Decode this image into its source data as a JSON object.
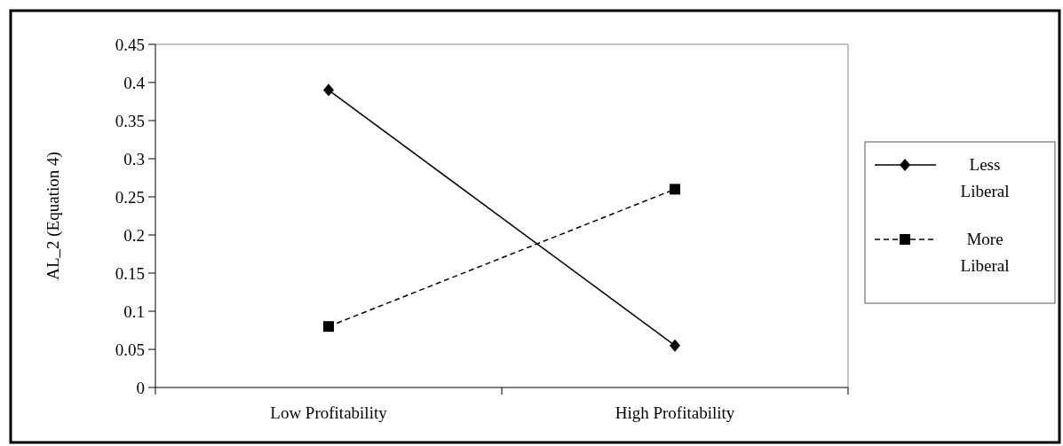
{
  "chart_data": {
    "type": "line",
    "ylabel": "AL_2 (Equation 4)",
    "categories": [
      "Low Profitability",
      "High Profitability"
    ],
    "series": [
      {
        "name": "Less Liberal",
        "color": "#000000",
        "values": [
          0.39,
          0.055
        ],
        "marker": "diamond",
        "line_style": "solid"
      },
      {
        "name": "More Liberal",
        "color": "#000000",
        "values": [
          0.08,
          0.26
        ],
        "marker": "square",
        "line_style": "dashed"
      }
    ],
    "ylim": [
      0,
      0.45
    ],
    "yticks": [
      0,
      0.05,
      0.1,
      0.15,
      0.2,
      0.25,
      0.3,
      0.35,
      0.4,
      0.45
    ],
    "legend": "right"
  }
}
